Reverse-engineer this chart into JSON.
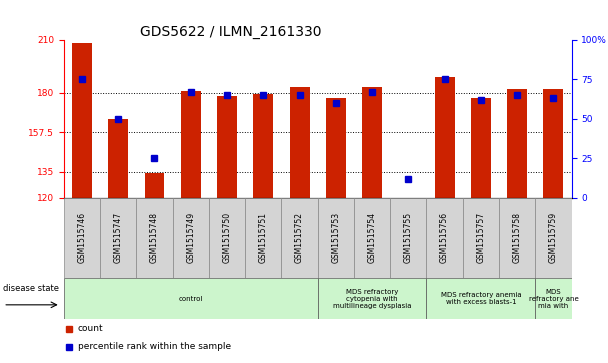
{
  "title": "GDS5622 / ILMN_2161330",
  "samples": [
    "GSM1515746",
    "GSM1515747",
    "GSM1515748",
    "GSM1515749",
    "GSM1515750",
    "GSM1515751",
    "GSM1515752",
    "GSM1515753",
    "GSM1515754",
    "GSM1515755",
    "GSM1515756",
    "GSM1515757",
    "GSM1515758",
    "GSM1515759"
  ],
  "counts": [
    208,
    165,
    134,
    181,
    178,
    179,
    183,
    177,
    183,
    120,
    189,
    177,
    182,
    182
  ],
  "percentiles": [
    75,
    50,
    25,
    67,
    65,
    65,
    65,
    60,
    67,
    12,
    75,
    62,
    65,
    63
  ],
  "ylim_left": [
    120,
    210
  ],
  "yticks_left": [
    120,
    135,
    157.5,
    180,
    210
  ],
  "ylim_right": [
    0,
    100
  ],
  "yticks_right": [
    0,
    25,
    50,
    75,
    100
  ],
  "bar_color": "#cc2200",
  "dot_color": "#0000cc",
  "disease_groups": [
    {
      "label": "control",
      "start": 0,
      "end": 7
    },
    {
      "label": "MDS refractory\ncytopenia with\nmultilineage dysplasia",
      "start": 7,
      "end": 10
    },
    {
      "label": "MDS refractory anemia\nwith excess blasts-1",
      "start": 10,
      "end": 13
    },
    {
      "label": "MDS\nrefractory ane\nmia with",
      "start": 13,
      "end": 14
    }
  ],
  "disease_label": "disease state",
  "legend_count": "count",
  "legend_percentile": "percentile rank within the sample",
  "bar_width": 0.55,
  "title_fontsize": 10,
  "tick_fontsize": 6.5,
  "label_fontsize": 7
}
